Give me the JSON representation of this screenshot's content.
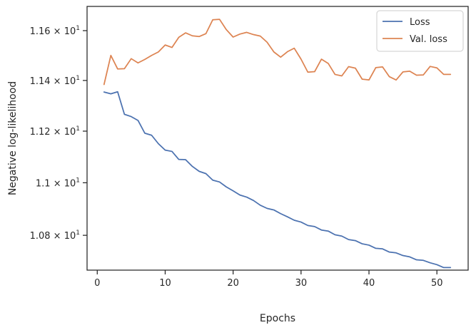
{
  "chart_data": {
    "type": "line",
    "xlabel": "Epochs",
    "ylabel": "Negative log-likelihood",
    "yscale": "log",
    "xlim": [
      -1.5,
      54.6
    ],
    "ylim": [
      10.6695,
      11.6985
    ],
    "xticks": [
      {
        "value": 0,
        "label": "0"
      },
      {
        "value": 10,
        "label": "10"
      },
      {
        "value": 20,
        "label": "20"
      },
      {
        "value": 30,
        "label": "30"
      },
      {
        "value": 40,
        "label": "40"
      },
      {
        "value": 50,
        "label": "50"
      }
    ],
    "yticks": [
      {
        "value": 10.8,
        "label": "1.08 × 10",
        "exp": "1"
      },
      {
        "value": 11.0,
        "label": "1.1 × 10",
        "exp": "1"
      },
      {
        "value": 11.2,
        "label": "1.12 × 10",
        "exp": "1"
      },
      {
        "value": 11.4,
        "label": "1.14 × 10",
        "exp": "1"
      },
      {
        "value": 11.6,
        "label": "1.16 × 10",
        "exp": "1"
      }
    ],
    "grid": false,
    "legend_position": "top-right",
    "x": [
      1,
      2,
      3,
      4,
      5,
      6,
      7,
      8,
      9,
      10,
      11,
      12,
      13,
      14,
      15,
      16,
      17,
      18,
      19,
      20,
      21,
      22,
      23,
      24,
      25,
      26,
      27,
      28,
      29,
      30,
      31,
      32,
      33,
      34,
      35,
      36,
      37,
      38,
      39,
      40,
      41,
      42,
      43,
      44,
      45,
      46,
      47,
      48,
      49,
      50,
      51,
      52
    ],
    "series": [
      {
        "name": "Loss",
        "color": "#4c72b0",
        "values": [
          11.354,
          11.347,
          11.355,
          11.266,
          11.257,
          11.242,
          11.192,
          11.184,
          11.151,
          11.126,
          11.121,
          11.09,
          11.089,
          11.063,
          11.044,
          11.035,
          11.01,
          11.003,
          10.984,
          10.969,
          10.953,
          10.945,
          10.932,
          10.914,
          10.902,
          10.896,
          10.882,
          10.87,
          10.857,
          10.85,
          10.837,
          10.833,
          10.82,
          10.816,
          10.802,
          10.797,
          10.784,
          10.78,
          10.768,
          10.763,
          10.751,
          10.749,
          10.737,
          10.734,
          10.724,
          10.719,
          10.708,
          10.706,
          10.697,
          10.69,
          10.679,
          10.679
        ]
      },
      {
        "name": "Val. loss",
        "color": "#dd8452",
        "values": [
          11.384,
          11.5,
          11.446,
          11.447,
          11.487,
          11.47,
          11.484,
          11.5,
          11.514,
          11.542,
          11.532,
          11.573,
          11.591,
          11.579,
          11.576,
          11.588,
          11.644,
          11.646,
          11.604,
          11.574,
          11.586,
          11.593,
          11.584,
          11.578,
          11.553,
          11.514,
          11.493,
          11.515,
          11.529,
          11.485,
          11.433,
          11.435,
          11.485,
          11.468,
          11.424,
          11.418,
          11.455,
          11.449,
          11.405,
          11.402,
          11.451,
          11.454,
          11.415,
          11.402,
          11.434,
          11.437,
          11.421,
          11.422,
          11.456,
          11.45,
          11.424,
          11.424
        ]
      }
    ]
  }
}
